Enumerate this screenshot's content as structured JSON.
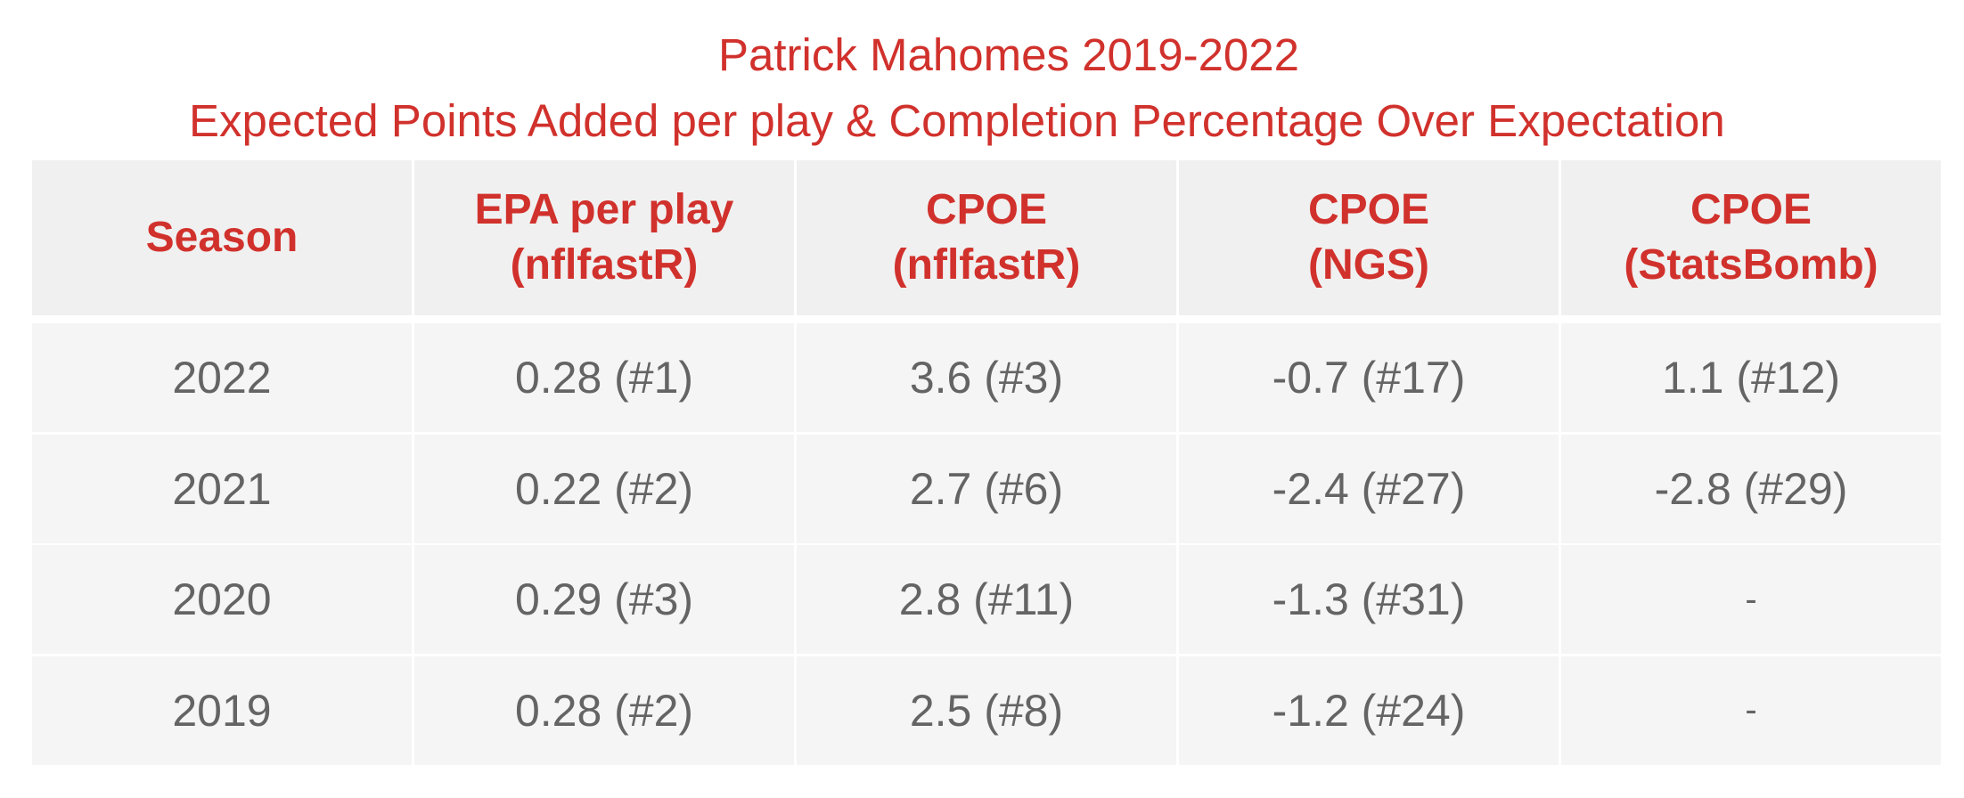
{
  "chart_data": {
    "type": "table",
    "title": "Patrick Mahomes 2019-2022",
    "subtitle": "Expected Points Added per play & Completion Percentage Over Expectation",
    "columns": [
      [
        "Season"
      ],
      [
        "EPA per play",
        "(nflfastR)"
      ],
      [
        "CPOE",
        "(nflfastR)"
      ],
      [
        "CPOE",
        "(NGS)"
      ],
      [
        "CPOE",
        "(StatsBomb)"
      ]
    ],
    "rows": [
      [
        "2022",
        "0.28 (#1)",
        "3.6 (#3)",
        "-0.7 (#17)",
        "1.1 (#12)"
      ],
      [
        "2021",
        "0.22 (#2)",
        "2.7 (#6)",
        "-2.4 (#27)",
        "-2.8 (#29)"
      ],
      [
        "2020",
        "0.29 (#3)",
        "2.8 (#11)",
        "-1.3 (#31)",
        "-"
      ],
      [
        "2019",
        "0.28 (#2)",
        "2.5 (#8)",
        "-1.2 (#24)",
        "-"
      ]
    ]
  },
  "colors": {
    "title": "#d1312c",
    "header_text": "#d1312c",
    "header_bg": "#f0f0f0",
    "cell_text": "#646464",
    "cell_bg": "#f5f5f5",
    "grid": "#ffffff"
  }
}
